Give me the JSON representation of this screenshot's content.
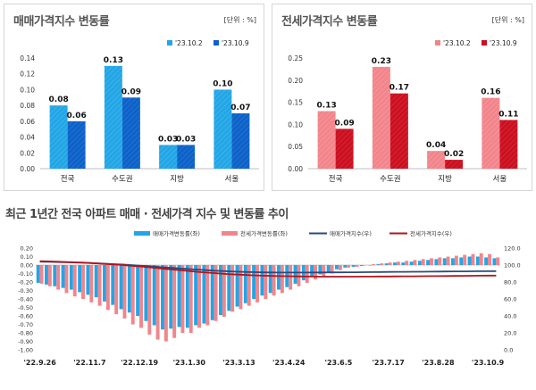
{
  "left_panel": {
    "title": "매매가격지수 변동률",
    "unit": "[단위 : %]"
  },
  "right_panel": {
    "title": "전세가격지수 변동률",
    "unit": "[단위 : %]"
  },
  "bottom_panel": {
    "title": "최근 1년간 전국 아파트 매매 · 전세가격 지수 및 변동률 추이"
  },
  "colors": {
    "sale_light": "#22a6e6",
    "sale_dark": "#0d62c9",
    "jeonse_light": "#f2858b",
    "jeonse_dark": "#cc1020",
    "sale_index_line": "#2a4a7e",
    "jeonse_index_line": "#b3141c"
  },
  "chart_data": [
    {
      "type": "bar",
      "categories": [
        "전국",
        "수도권",
        "지방",
        "서울"
      ],
      "series": [
        {
          "name": "'23.10.2",
          "values": [
            0.08,
            0.13,
            0.03,
            0.1
          ]
        },
        {
          "name": "'23.10.9",
          "values": [
            0.06,
            0.09,
            0.03,
            0.07
          ]
        }
      ],
      "yticks": [
        "0.00",
        "0.02",
        "0.04",
        "0.06",
        "0.08",
        "0.10",
        "0.12",
        "0.14"
      ],
      "ylim": [
        0,
        0.14
      ],
      "value_labels": [
        [
          "0.08",
          "0.13",
          "0.03",
          "0.10"
        ],
        [
          "0.06",
          "0.09",
          "0.03",
          "0.07"
        ]
      ]
    },
    {
      "type": "bar",
      "categories": [
        "전국",
        "수도권",
        "지방",
        "서울"
      ],
      "series": [
        {
          "name": "'23.10.2",
          "values": [
            0.13,
            0.23,
            0.04,
            0.16
          ]
        },
        {
          "name": "'23.10.9",
          "values": [
            0.09,
            0.17,
            0.02,
            0.11
          ]
        }
      ],
      "yticks": [
        "0.00",
        "0.05",
        "0.10",
        "0.15",
        "0.20",
        "0.25"
      ],
      "ylim": [
        0,
        0.25
      ],
      "value_labels": [
        [
          "0.13",
          "0.23",
          "0.04",
          "0.16"
        ],
        [
          "0.09",
          "0.17",
          "0.02",
          "0.11"
        ]
      ]
    },
    {
      "type": "bar",
      "series": [
        {
          "name": "매매가격변동률(좌)",
          "axis": "left",
          "values": [
            -0.21,
            -0.23,
            -0.25,
            -0.27,
            -0.29,
            -0.32,
            -0.35,
            -0.38,
            -0.43,
            -0.47,
            -0.52,
            -0.56,
            -0.6,
            -0.66,
            -0.71,
            -0.76,
            -0.75,
            -0.73,
            -0.74,
            -0.71,
            -0.69,
            -0.65,
            -0.59,
            -0.54,
            -0.49,
            -0.45,
            -0.4,
            -0.36,
            -0.33,
            -0.29,
            -0.26,
            -0.22,
            -0.18,
            -0.14,
            -0.11,
            -0.08,
            -0.05,
            -0.03,
            -0.02,
            -0.01,
            0.0,
            0.01,
            0.02,
            0.03,
            0.03,
            0.04,
            0.05,
            0.06,
            0.07,
            0.08,
            0.08,
            0.09,
            0.1,
            0.1,
            0.09,
            0.08
          ]
        },
        {
          "name": "전세가격변동률(좌)",
          "axis": "left",
          "values": [
            -0.22,
            -0.25,
            -0.29,
            -0.33,
            -0.37,
            -0.4,
            -0.44,
            -0.48,
            -0.53,
            -0.58,
            -0.63,
            -0.7,
            -0.74,
            -0.82,
            -0.88,
            -0.9,
            -0.86,
            -0.8,
            -0.8,
            -0.74,
            -0.71,
            -0.66,
            -0.61,
            -0.55,
            -0.52,
            -0.48,
            -0.44,
            -0.4,
            -0.36,
            -0.33,
            -0.29,
            -0.25,
            -0.21,
            -0.17,
            -0.13,
            -0.1,
            -0.06,
            -0.03,
            -0.02,
            0.0,
            0.01,
            0.02,
            0.03,
            0.04,
            0.05,
            0.06,
            0.07,
            0.08,
            0.09,
            0.1,
            0.11,
            0.12,
            0.13,
            0.14,
            0.13,
            0.09
          ]
        },
        {
          "name": "매매가격지수(우)",
          "axis": "right",
          "type": "line",
          "values": [
            104.0,
            103.8,
            103.6,
            103.3,
            103.0,
            102.7,
            102.4,
            102.0,
            101.6,
            101.1,
            100.6,
            100.0,
            99.4,
            98.7,
            98.0,
            97.3,
            96.6,
            96.0,
            95.3,
            94.6,
            94.0,
            93.4,
            92.9,
            92.5,
            92.1,
            91.8,
            91.6,
            91.4,
            91.3,
            91.2,
            91.2,
            91.2,
            91.2,
            91.3,
            91.3,
            91.4,
            91.4,
            91.5,
            91.5,
            91.6,
            91.7,
            91.8,
            91.9,
            92.0,
            92.0,
            92.1,
            92.1,
            92.2,
            92.3,
            92.4,
            92.5,
            92.5,
            92.6,
            92.7,
            92.7,
            92.8
          ]
        },
        {
          "name": "전세가격지수(우)",
          "axis": "right",
          "type": "line",
          "values": [
            104.5,
            104.3,
            104.0,
            103.7,
            103.3,
            102.9,
            102.4,
            101.9,
            101.3,
            100.7,
            100.0,
            99.2,
            98.4,
            97.5,
            96.6,
            95.6,
            94.7,
            93.8,
            92.9,
            92.0,
            91.2,
            90.5,
            89.8,
            89.2,
            88.7,
            88.2,
            87.8,
            87.5,
            87.2,
            87.0,
            86.8,
            86.6,
            86.5,
            86.4,
            86.3,
            86.3,
            86.3,
            86.3,
            86.3,
            86.4,
            86.4,
            86.5,
            86.5,
            86.6,
            86.7,
            86.7,
            86.8,
            86.9,
            87.0,
            87.1,
            87.2,
            87.3,
            87.4,
            87.5,
            87.6,
            87.6
          ]
        }
      ],
      "yticks_left": [
        "0.20",
        "0.10",
        "0.00",
        "-0.10",
        "-0.20",
        "-0.30",
        "-0.40",
        "-0.50",
        "-0.60",
        "-0.70",
        "-0.80",
        "-0.90",
        "-1.00"
      ],
      "ylim_left": [
        -1.0,
        0.2
      ],
      "yticks_right": [
        "120.0",
        "100.0",
        "80.0",
        "60.0",
        "40.0",
        "20.0",
        "0.0"
      ],
      "ylim_right": [
        0,
        120
      ],
      "xticks": [
        "'22.9.26",
        "'22.11.7",
        "'22.12.19",
        "'23.1.30",
        "'23.3.13",
        "'23.4.24",
        "'23.6.5",
        "'23.7.17",
        "'23.8.28",
        "'23.10.9"
      ]
    }
  ]
}
